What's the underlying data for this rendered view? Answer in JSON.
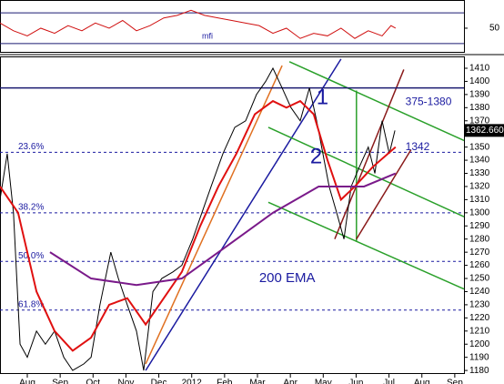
{
  "chart_data": {
    "type": "line",
    "xlim": [
      0.17,
      14.28
    ],
    "xticks": [
      {
        "value": 1,
        "label": "Aug"
      },
      {
        "value": 2,
        "label": "Sep"
      },
      {
        "value": 3,
        "label": "Oct"
      },
      {
        "value": 4,
        "label": "Nov"
      },
      {
        "value": 5,
        "label": "Dec"
      },
      {
        "value": 6,
        "label": "2012"
      },
      {
        "value": 7,
        "label": "Feb"
      },
      {
        "value": 8,
        "label": "Mar"
      },
      {
        "value": 9,
        "label": "Apr"
      },
      {
        "value": 10,
        "label": "May"
      },
      {
        "value": 11,
        "label": "Jun"
      },
      {
        "value": 12,
        "label": "Jul"
      },
      {
        "value": 13,
        "label": "Aug"
      },
      {
        "value": 14,
        "label": "Sep"
      }
    ],
    "ylim": [
      1178,
      1419
    ],
    "yticks": [
      1180,
      1190,
      1200,
      1210,
      1220,
      1230,
      1240,
      1250,
      1260,
      1270,
      1280,
      1290,
      1300,
      1310,
      1320,
      1330,
      1340,
      1350,
      1360,
      1370,
      1380,
      1390,
      1400,
      1410
    ],
    "series": [
      {
        "color": "#000000",
        "x": [
          0.17,
          0.39,
          0.58,
          0.78,
          1.0,
          1.28,
          1.55,
          1.83,
          2.11,
          2.38,
          2.72,
          2.94,
          3.21,
          3.54,
          3.77,
          4.04,
          4.32,
          4.54,
          4.82,
          5.09,
          5.43,
          5.7,
          6.03,
          6.31,
          6.59,
          6.95,
          7.31,
          7.64,
          7.97,
          8.25,
          8.47,
          8.75,
          9.02,
          9.3,
          9.58,
          9.8,
          9.99,
          10.18,
          10.41,
          10.63,
          10.85,
          11.1,
          11.37,
          11.57,
          11.79,
          12.01,
          12.18
        ],
        "values": [
          1310,
          1345,
          1300,
          1200,
          1190,
          1210,
          1200,
          1210,
          1190,
          1180,
          1185,
          1190,
          1230,
          1270,
          1250,
          1230,
          1210,
          1180,
          1240,
          1250,
          1255,
          1260,
          1280,
          1300,
          1320,
          1345,
          1365,
          1370,
          1390,
          1400,
          1410,
          1395,
          1380,
          1370,
          1395,
          1370,
          1345,
          1320,
          1300,
          1280,
          1320,
          1335,
          1350,
          1330,
          1370,
          1345,
          1362.66
        ]
      },
      {
        "color": "#e01010",
        "x": [
          0.17,
          0.72,
          1.28,
          1.83,
          2.38,
          2.94,
          3.49,
          4.04,
          4.6,
          5.15,
          5.7,
          6.26,
          6.81,
          7.36,
          7.92,
          8.47,
          8.88,
          9.3,
          9.71,
          10.13,
          10.54,
          10.96,
          11.51,
          12.2
        ],
        "values": [
          1320,
          1300,
          1240,
          1210,
          1195,
          1205,
          1230,
          1235,
          1215,
          1235,
          1255,
          1290,
          1320,
          1345,
          1375,
          1385,
          1380,
          1385,
          1375,
          1340,
          1310,
          1320,
          1335,
          1350
        ]
      },
      {
        "color": "#7a1a8a",
        "x": [
          1.69,
          2.94,
          4.32,
          5.7,
          7.09,
          8.47,
          9.86,
          11.24,
          12.2
        ],
        "values": [
          1270,
          1250,
          1245,
          1250,
          1275,
          1300,
          1320,
          1320,
          1330
        ]
      }
    ],
    "lines": [
      {
        "color": "#1a1aa0",
        "x": [
          4.6,
          10.54
        ],
        "values": [
          1180,
          1417
        ]
      },
      {
        "color": "#e07020",
        "x": [
          4.6,
          8.75
        ],
        "values": [
          1185,
          1412
        ]
      },
      {
        "color": "#2aa02a",
        "x": [
          8.97,
          14.28
        ],
        "values": [
          1415,
          1355
        ]
      },
      {
        "color": "#2aa02a",
        "x": [
          8.33,
          14.28
        ],
        "values": [
          1365,
          1297
        ]
      },
      {
        "color": "#2aa02a",
        "x": [
          8.33,
          14.28
        ],
        "values": [
          1308,
          1242
        ]
      },
      {
        "color": "#2aa02a",
        "x": [
          11.01,
          11.01
        ],
        "values": [
          1393,
          1278
        ]
      },
      {
        "color": "#8a1a1a",
        "x": [
          10.35,
          12.45
        ],
        "values": [
          1280,
          1409
        ]
      },
      {
        "color": "#8a1a1a",
        "x": [
          11.01,
          12.67
        ],
        "values": [
          1280,
          1348
        ]
      },
      {
        "color": "#1a1a70",
        "x": [
          0.17,
          14.28
        ],
        "values": [
          1395,
          1395
        ]
      }
    ],
    "fib": [
      {
        "value": 1346,
        "label": "23.6%"
      },
      {
        "value": 1300,
        "label": "38.2%"
      },
      {
        "value": 1263,
        "label": "50.0%"
      },
      {
        "value": 1226,
        "label": "61.8%"
      }
    ],
    "annotations": [
      {
        "text": "1",
        "x": 9.79,
        "y": 1387
      },
      {
        "text": "2",
        "x": 9.6,
        "y": 1342
      },
      {
        "text": "200 EMA",
        "x": 8.05,
        "y": 1250
      },
      {
        "text": "375-1380",
        "x": 12.5,
        "y": 1384
      },
      {
        "text": "1342",
        "x": 12.5,
        "y": 1350
      }
    ],
    "last_price": {
      "value": 1362.66,
      "label": "1362.660"
    },
    "mfi": {
      "label": "mfi",
      "ylim": [
        2,
        105
      ],
      "yticks": [
        50
      ],
      "levels": [
        20,
        80
      ],
      "x": [
        0.17,
        0.58,
        1.0,
        1.41,
        1.83,
        2.24,
        2.66,
        3.07,
        3.49,
        3.9,
        4.32,
        4.73,
        5.15,
        5.56,
        5.98,
        6.39,
        6.81,
        7.22,
        7.64,
        8.05,
        8.47,
        8.88,
        9.3,
        9.71,
        10.13,
        10.54,
        10.96,
        11.37,
        11.79,
        12.06,
        12.2
      ],
      "values": [
        60,
        45,
        35,
        50,
        40,
        55,
        45,
        60,
        50,
        65,
        45,
        55,
        70,
        75,
        85,
        75,
        70,
        65,
        60,
        55,
        40,
        50,
        30,
        40,
        35,
        50,
        30,
        45,
        35,
        55,
        50
      ]
    }
  }
}
